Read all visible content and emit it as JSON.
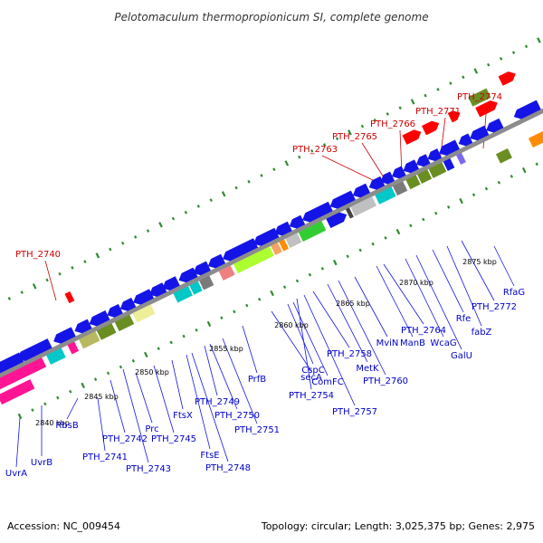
{
  "title": "Pelotomaculum thermopropionicum SI, complete genome",
  "footer": {
    "accession": "Accession: NC_009454",
    "topology": "Topology: circular; Length: 3,025,375 bp; Genes: 2,975"
  },
  "scale_labels": [
    "2840 kbp",
    "2845 kbp",
    "2850 kbp",
    "2855 kbp",
    "2860 kbp",
    "2865 kbp",
    "2870 kbp",
    "2875 kbp"
  ],
  "red_labels": [
    "PTH_2740",
    "PTH_2763",
    "PTH_2765",
    "PTH_2766",
    "PTH_2771",
    "PTH_2774"
  ],
  "gene_labels": [
    "UvrA",
    "UvrB",
    "RbsB",
    "PTH_2741",
    "PTH_2742",
    "PTH_2743",
    "Prc",
    "PTH_2745",
    "FtsX",
    "FtsE",
    "PTH_2748",
    "PTH_2749",
    "PTH_2750",
    "PTH_2751",
    "PrfB",
    "secA",
    "CspC",
    "ComFC",
    "PTH_2754",
    "PTH_2757",
    "PTH_2758",
    "MetK",
    "PTH_2760",
    "MviN",
    "ManB",
    "PTH_2764",
    "WcaG",
    "GalU",
    "Rfe",
    "fabZ",
    "PTH_2772",
    "RfaG"
  ]
}
